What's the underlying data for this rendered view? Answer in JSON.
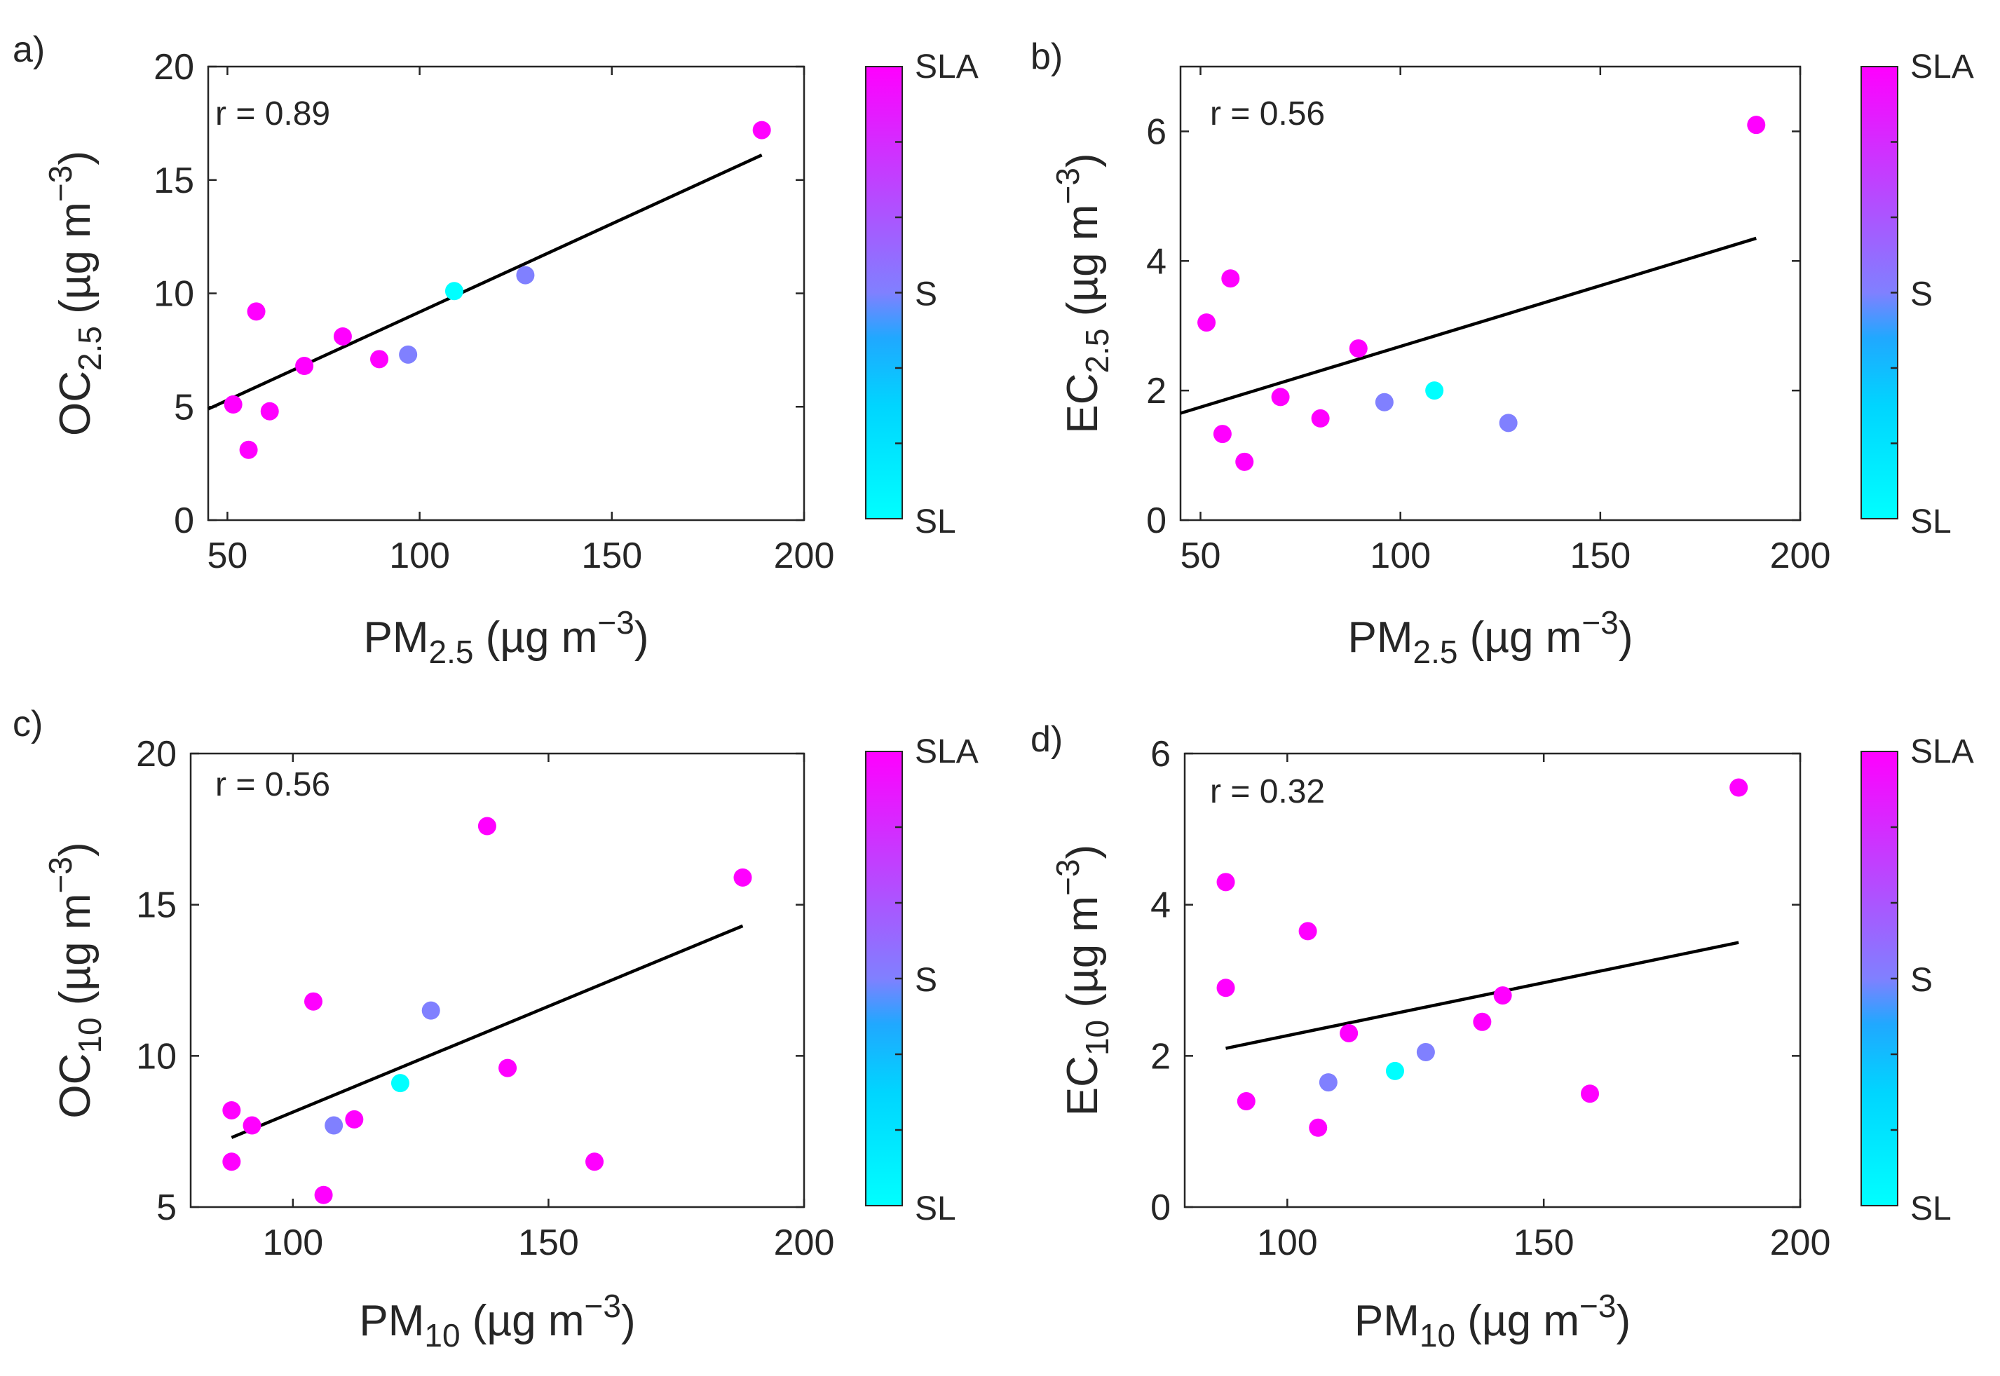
{
  "colors": {
    "SL": "#00ffff",
    "S": "#8080ff",
    "SLA": "#ff00ff"
  },
  "colorbar_labels": {
    "top": "SLA",
    "mid": "S",
    "bottom": "SL"
  },
  "chart_data": [
    {
      "type": "scatter",
      "panel_label": "a)",
      "annotation": "r = 0.89",
      "xlabel": {
        "main": "PM",
        "sub": "2.5",
        "unit": "(µg m",
        "sup": "−3",
        "close": ")"
      },
      "ylabel": {
        "main": "OC",
        "sub": "2.5",
        "unit": "(µg m",
        "sup": "−3",
        "close": ")"
      },
      "xlim": [
        45,
        200
      ],
      "ylim": [
        0,
        20
      ],
      "xticks": [
        50,
        100,
        150,
        200
      ],
      "yticks": [
        0,
        5,
        10,
        15,
        20
      ],
      "fit_line": {
        "x": [
          45,
          189
        ],
        "y": [
          4.9,
          16.1
        ]
      },
      "points": [
        {
          "x": 51.5,
          "y": 5.1,
          "category": "SLA"
        },
        {
          "x": 55.5,
          "y": 3.1,
          "category": "SLA"
        },
        {
          "x": 57.5,
          "y": 9.2,
          "category": "SLA"
        },
        {
          "x": 61,
          "y": 4.8,
          "category": "SLA"
        },
        {
          "x": 70,
          "y": 6.8,
          "category": "SLA"
        },
        {
          "x": 80,
          "y": 8.1,
          "category": "SLA"
        },
        {
          "x": 89.5,
          "y": 7.1,
          "category": "SLA"
        },
        {
          "x": 97,
          "y": 7.3,
          "category": "S"
        },
        {
          "x": 109,
          "y": 10.1,
          "category": "SL"
        },
        {
          "x": 127.5,
          "y": 10.8,
          "category": "S"
        },
        {
          "x": 189,
          "y": 17.2,
          "category": "SLA"
        }
      ]
    },
    {
      "type": "scatter",
      "panel_label": "b)",
      "annotation": "r = 0.56",
      "xlabel": {
        "main": "PM",
        "sub": "2.5",
        "unit": "(µg m",
        "sup": "−3",
        "close": ")"
      },
      "ylabel": {
        "main": "EC",
        "sub": "2.5",
        "unit": "(µg m",
        "sup": "−3",
        "close": ")"
      },
      "xlim": [
        45,
        200
      ],
      "ylim": [
        0,
        7
      ],
      "xticks": [
        50,
        100,
        150,
        200
      ],
      "yticks": [
        0,
        2,
        4,
        6
      ],
      "fit_line": {
        "x": [
          45,
          189
        ],
        "y": [
          1.65,
          4.35
        ]
      },
      "points": [
        {
          "x": 51.5,
          "y": 3.05,
          "category": "SLA"
        },
        {
          "x": 55.5,
          "y": 1.33,
          "category": "SLA"
        },
        {
          "x": 57.5,
          "y": 3.73,
          "category": "SLA"
        },
        {
          "x": 61,
          "y": 0.9,
          "category": "SLA"
        },
        {
          "x": 70,
          "y": 1.9,
          "category": "SLA"
        },
        {
          "x": 80,
          "y": 1.57,
          "category": "SLA"
        },
        {
          "x": 89.5,
          "y": 2.65,
          "category": "SLA"
        },
        {
          "x": 96,
          "y": 1.82,
          "category": "S"
        },
        {
          "x": 108.5,
          "y": 2.0,
          "category": "SL"
        },
        {
          "x": 127,
          "y": 1.5,
          "category": "S"
        },
        {
          "x": 189,
          "y": 6.1,
          "category": "SLA"
        }
      ]
    },
    {
      "type": "scatter",
      "panel_label": "c)",
      "annotation": "r = 0.56",
      "xlabel": {
        "main": "PM",
        "sub": "10",
        "unit": "(µg m",
        "sup": "−3",
        "close": ")"
      },
      "ylabel": {
        "main": "OC",
        "sub": "10",
        "unit": "(µg m",
        "sup": "−3",
        "close": ")"
      },
      "xlim": [
        80,
        200
      ],
      "ylim": [
        5,
        20
      ],
      "xticks": [
        100,
        150,
        200
      ],
      "yticks": [
        5,
        10,
        15,
        20
      ],
      "fit_line": {
        "x": [
          88,
          188
        ],
        "y": [
          7.3,
          14.3
        ]
      },
      "points": [
        {
          "x": 88,
          "y": 8.2,
          "category": "SLA"
        },
        {
          "x": 88,
          "y": 6.5,
          "category": "SLA"
        },
        {
          "x": 92,
          "y": 7.7,
          "category": "SLA"
        },
        {
          "x": 104,
          "y": 11.8,
          "category": "SLA"
        },
        {
          "x": 106,
          "y": 5.4,
          "category": "SLA"
        },
        {
          "x": 108,
          "y": 7.7,
          "category": "S"
        },
        {
          "x": 112,
          "y": 7.9,
          "category": "SLA"
        },
        {
          "x": 121,
          "y": 9.1,
          "category": "SL"
        },
        {
          "x": 127,
          "y": 11.5,
          "category": "S"
        },
        {
          "x": 138,
          "y": 17.6,
          "category": "SLA"
        },
        {
          "x": 142,
          "y": 9.6,
          "category": "SLA"
        },
        {
          "x": 159,
          "y": 6.5,
          "category": "SLA"
        },
        {
          "x": 188,
          "y": 15.9,
          "category": "SLA"
        }
      ]
    },
    {
      "type": "scatter",
      "panel_label": "d)",
      "annotation": "r = 0.32",
      "xlabel": {
        "main": "PM",
        "sub": "10",
        "unit": "(µg m",
        "sup": "−3",
        "close": ")"
      },
      "ylabel": {
        "main": "EC",
        "sub": "10",
        "unit": "(µg m",
        "sup": "−3",
        "close": ")"
      },
      "xlim": [
        80,
        200
      ],
      "ylim": [
        0,
        6
      ],
      "xticks": [
        100,
        150,
        200
      ],
      "yticks": [
        0,
        2,
        4,
        6
      ],
      "fit_line": {
        "x": [
          88,
          188
        ],
        "y": [
          2.1,
          3.5
        ]
      },
      "points": [
        {
          "x": 88,
          "y": 4.3,
          "category": "SLA"
        },
        {
          "x": 88,
          "y": 2.9,
          "category": "SLA"
        },
        {
          "x": 92,
          "y": 1.4,
          "category": "SLA"
        },
        {
          "x": 104,
          "y": 3.65,
          "category": "SLA"
        },
        {
          "x": 106,
          "y": 1.05,
          "category": "SLA"
        },
        {
          "x": 108,
          "y": 1.65,
          "category": "S"
        },
        {
          "x": 112,
          "y": 2.3,
          "category": "SLA"
        },
        {
          "x": 121,
          "y": 1.8,
          "category": "SL"
        },
        {
          "x": 127,
          "y": 2.05,
          "category": "S"
        },
        {
          "x": 138,
          "y": 2.45,
          "category": "SLA"
        },
        {
          "x": 142,
          "y": 2.8,
          "category": "SLA"
        },
        {
          "x": 159,
          "y": 1.5,
          "category": "SLA"
        },
        {
          "x": 188,
          "y": 5.55,
          "category": "SLA"
        }
      ]
    }
  ]
}
